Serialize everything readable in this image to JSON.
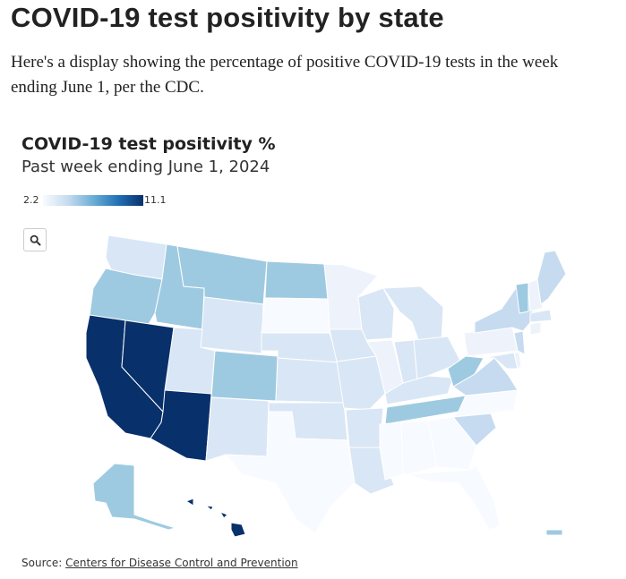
{
  "header": {
    "title": "COVID-19 test positivity by state",
    "dek": "Here's a display showing the percentage of positive COVID-19 tests in the week ending June 1, per the CDC."
  },
  "chart": {
    "title": "COVID-19 test positivity %",
    "subtitle": "Past week ending June 1, 2024",
    "legend": {
      "min_label": "2.2",
      "max_label": "11.1"
    }
  },
  "source": {
    "prefix": "Source: ",
    "link_text": "Centers for Disease Control and Prevention"
  },
  "colors": {
    "very_high": "#08306b",
    "mid_high": "#9ecae1",
    "mid": "#c6dbef",
    "low_mid": "#d9e6f5",
    "low": "#eef3fb",
    "very_low": "#f7fbff",
    "text": "#222222"
  },
  "chart_data": {
    "type": "choropleth",
    "metric": "COVID-19 test positivity %",
    "scale": {
      "min": 2.2,
      "max": 11.1
    },
    "notes": "Exact per-state values not printed; levels estimated from fill shade.",
    "regions": [
      {
        "name": "California",
        "level": "very_high"
      },
      {
        "name": "Nevada",
        "level": "very_high"
      },
      {
        "name": "Arizona",
        "level": "very_high"
      },
      {
        "name": "Hawaii",
        "level": "very_high"
      },
      {
        "name": "Oregon",
        "level": "mid_high"
      },
      {
        "name": "Idaho",
        "level": "mid_high"
      },
      {
        "name": "Montana",
        "level": "mid_high"
      },
      {
        "name": "North Dakota",
        "level": "mid_high"
      },
      {
        "name": "Colorado",
        "level": "mid_high"
      },
      {
        "name": "Tennessee",
        "level": "mid_high"
      },
      {
        "name": "Vermont",
        "level": "mid_high"
      },
      {
        "name": "West Virginia",
        "level": "mid_high"
      },
      {
        "name": "Alaska",
        "level": "mid_high"
      },
      {
        "name": "Puerto Rico",
        "level": "mid_high"
      },
      {
        "name": "Washington",
        "level": "low_mid"
      },
      {
        "name": "Wyoming",
        "level": "low_mid"
      },
      {
        "name": "Utah",
        "level": "low_mid"
      },
      {
        "name": "New Mexico",
        "level": "low_mid"
      },
      {
        "name": "Nebraska",
        "level": "low_mid"
      },
      {
        "name": "Kansas",
        "level": "low_mid"
      },
      {
        "name": "Oklahoma",
        "level": "low_mid"
      },
      {
        "name": "Iowa",
        "level": "low_mid"
      },
      {
        "name": "Missouri",
        "level": "low_mid"
      },
      {
        "name": "Arkansas",
        "level": "low_mid"
      },
      {
        "name": "Louisiana",
        "level": "low_mid"
      },
      {
        "name": "Minnesota",
        "level": "low"
      },
      {
        "name": "Wisconsin",
        "level": "low_mid"
      },
      {
        "name": "Michigan",
        "level": "low_mid"
      },
      {
        "name": "Illinois",
        "level": "low"
      },
      {
        "name": "Indiana",
        "level": "low_mid"
      },
      {
        "name": "Ohio",
        "level": "low_mid"
      },
      {
        "name": "Kentucky",
        "level": "low_mid"
      },
      {
        "name": "Pennsylvania",
        "level": "low"
      },
      {
        "name": "New York",
        "level": "mid"
      },
      {
        "name": "Maine",
        "level": "mid"
      },
      {
        "name": "New Hampshire",
        "level": "low"
      },
      {
        "name": "Massachusetts",
        "level": "low_mid"
      },
      {
        "name": "Virginia",
        "level": "mid"
      },
      {
        "name": "South Carolina",
        "level": "mid"
      },
      {
        "name": "North Carolina",
        "level": "very_low"
      },
      {
        "name": "South Dakota",
        "level": "very_low"
      },
      {
        "name": "Texas",
        "level": "very_low"
      },
      {
        "name": "Mississippi",
        "level": "very_low"
      },
      {
        "name": "Alabama",
        "level": "very_low"
      },
      {
        "name": "Georgia",
        "level": "very_low"
      },
      {
        "name": "Florida",
        "level": "very_low"
      },
      {
        "name": "New Jersey",
        "level": "mid"
      },
      {
        "name": "Maryland",
        "level": "low_mid"
      },
      {
        "name": "Delaware",
        "level": "low"
      },
      {
        "name": "Connecticut",
        "level": "low"
      }
    ]
  }
}
